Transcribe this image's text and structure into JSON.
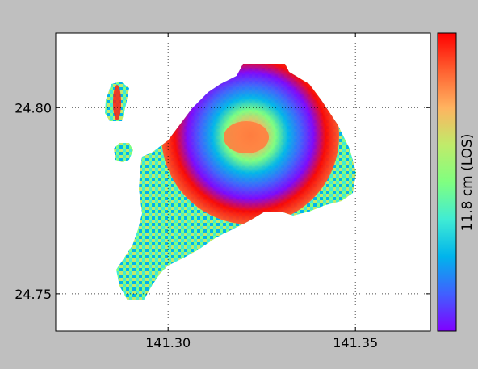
{
  "map": {
    "type": "insar-wrapped-interferogram",
    "x_axis": {
      "range": [
        141.27,
        141.37
      ],
      "ticks": [
        141.3,
        141.35
      ],
      "tick_labels": [
        "141.30",
        "141.35"
      ]
    },
    "y_axis": {
      "range": [
        24.74,
        24.82
      ],
      "ticks": [
        24.75,
        24.8
      ],
      "tick_labels": [
        "24.75",
        "24.80"
      ]
    },
    "grid": true,
    "grid_style": "dotted",
    "uplift_center": [
      141.318,
      24.791
    ],
    "colorbar": {
      "label": "11.8 cm (LOS)",
      "colormap": "rainbow",
      "colors": [
        "#8000ff",
        "#4060ff",
        "#00b4ec",
        "#40ecd4",
        "#80ff80",
        "#c0eb6a",
        "#ffb360",
        "#ff6030",
        "#ff0000"
      ]
    }
  }
}
